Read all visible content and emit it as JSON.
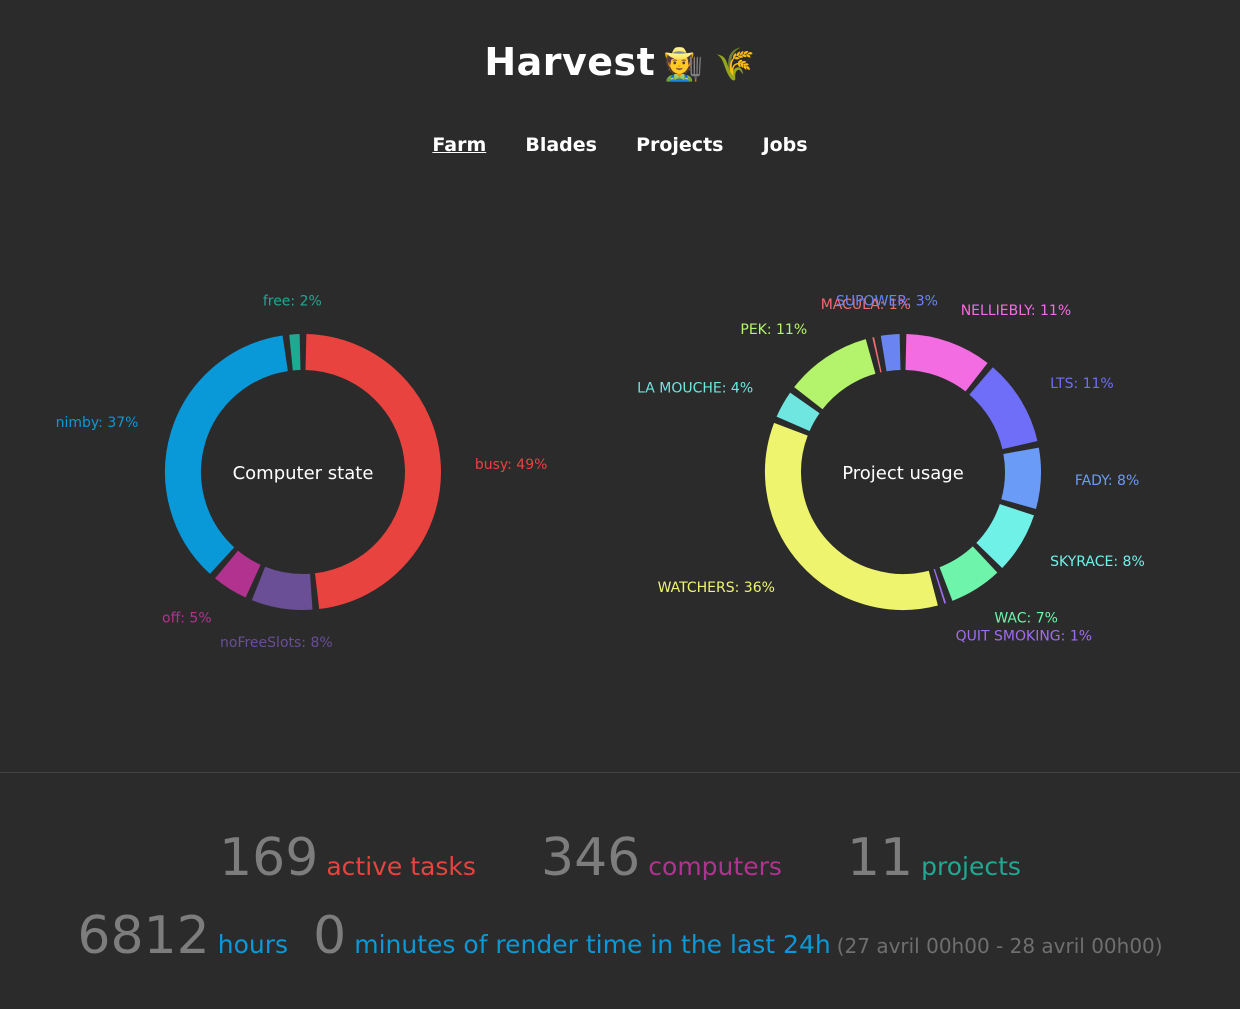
{
  "header": {
    "title": "Harvest",
    "emoji": "🧑‍🌾 🌾"
  },
  "nav": [
    {
      "label": "Farm",
      "active": true
    },
    {
      "label": "Blades",
      "active": false
    },
    {
      "label": "Projects",
      "active": false
    },
    {
      "label": "Jobs",
      "active": false
    }
  ],
  "chart_data": [
    {
      "type": "pie",
      "title": "Computer state",
      "slices": [
        {
          "label": "busy",
          "value": 49,
          "color": "#e8433e"
        },
        {
          "label": "noFreeSlots",
          "value": 8,
          "color": "#6a4e96"
        },
        {
          "label": "off",
          "value": 5,
          "color": "#b1338f"
        },
        {
          "label": "nimby",
          "value": 37,
          "color": "#0998d8"
        },
        {
          "label": "free",
          "value": 2,
          "color": "#1ea992"
        }
      ]
    },
    {
      "type": "pie",
      "title": "Project usage",
      "slices": [
        {
          "label": "NELLIEBLY",
          "value": 11,
          "color": "#f46ce2"
        },
        {
          "label": "LTS",
          "value": 11,
          "color": "#6f6ef8"
        },
        {
          "label": "FADY",
          "value": 8,
          "color": "#6a9cf7"
        },
        {
          "label": "SKYRACE",
          "value": 8,
          "color": "#6ff1e8"
        },
        {
          "label": "WAC",
          "value": 7,
          "color": "#6ff4ab"
        },
        {
          "label": "QUIT SMOKING",
          "value": 1,
          "color": "#a06bf3"
        },
        {
          "label": "WATCHERS",
          "value": 36,
          "color": "#eef46d"
        },
        {
          "label": "LA MOUCHE",
          "value": 4,
          "color": "#6fe6df"
        },
        {
          "label": "PEK",
          "value": 11,
          "color": "#b3f46c"
        },
        {
          "label": "MACULA",
          "value": 1,
          "color": "#f06c6f"
        },
        {
          "label": "SUPOWER",
          "value": 3,
          "color": "#6a85f2"
        }
      ]
    }
  ],
  "stats": {
    "active_tasks": {
      "value": "169",
      "label": "active tasks",
      "color": "#e8433e"
    },
    "computers": {
      "value": "346",
      "label": "computers",
      "color": "#b1338f"
    },
    "projects": {
      "value": "11",
      "label": "projects",
      "color": "#1ea992"
    },
    "hours": {
      "value": "6812",
      "label": "hours",
      "color": "#0998d8"
    },
    "minutes": {
      "value": "0",
      "label": "minutes of render time in the last 24h",
      "color": "#0998d8"
    },
    "range": "(27 avril 00h00 - 28 avril 00h00)"
  }
}
